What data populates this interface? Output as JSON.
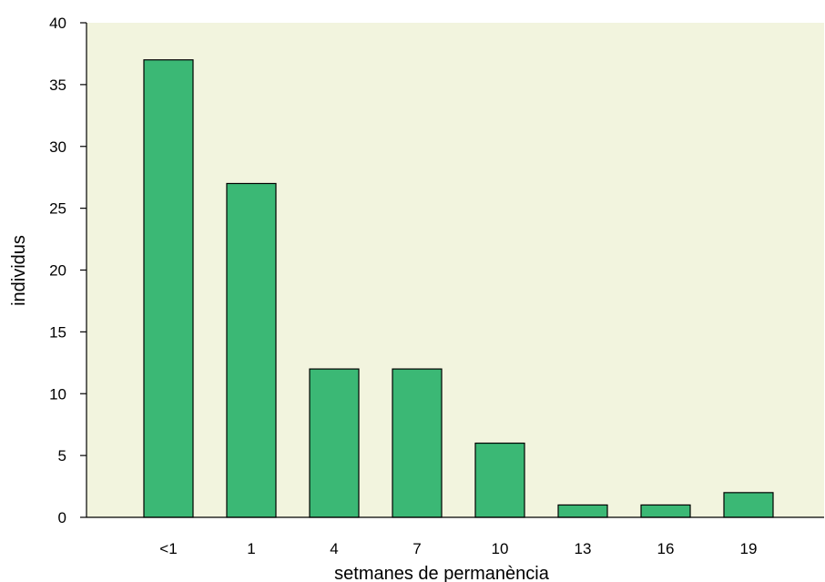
{
  "chart_data": {
    "type": "bar",
    "title": "",
    "xlabel": "setmanes de permanència",
    "ylabel": "individus",
    "categories": [
      "<1",
      "1",
      "4",
      "7",
      "10",
      "13",
      "16",
      "19"
    ],
    "values": [
      37,
      27,
      12,
      12,
      6,
      1,
      1,
      2
    ],
    "ylim": [
      0,
      40
    ],
    "yticks": [
      0,
      5,
      10,
      15,
      20,
      25,
      30,
      35,
      40
    ],
    "grid": false,
    "legend": "none",
    "colors": {
      "bar_fill": "#3bb875",
      "bar_stroke": "#000000",
      "plot_background": "#f2f4de",
      "axis": "#000000"
    }
  }
}
